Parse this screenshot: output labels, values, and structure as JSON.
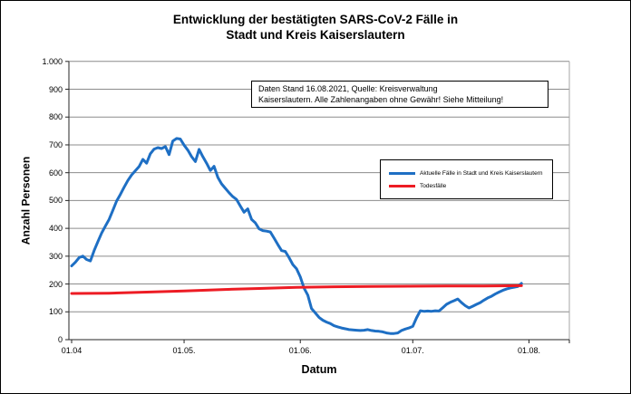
{
  "window": {
    "background": "#ffffff",
    "border_color": "#000000"
  },
  "chart_data": {
    "type": "line",
    "title": "Entwicklung der bestätigten SARS-CoV-2 Fälle in Stadt und Kreis Kaiserslautern",
    "title_lines": [
      "Entwicklung der bestätigten SARS-CoV-2 Fälle in",
      "Stadt und Kreis Kaiserslautern"
    ],
    "annotation": {
      "line1": "Daten Stand 16.08.2021, Quelle: Kreisverwaltung",
      "line2": "Kaiserslautern. Alle Zahlenangaben ohne Gewähr! Siehe Mitteilung!"
    },
    "x_axis": {
      "label": "Datum",
      "domain_days": [
        0,
        133
      ],
      "ticks": [
        {
          "label": "01.04",
          "day": 0
        },
        {
          "label": "01.05.",
          "day": 30
        },
        {
          "label": "01.06.",
          "day": 61
        },
        {
          "label": "01.07.",
          "day": 91
        },
        {
          "label": "01.08.",
          "day": 122
        }
      ]
    },
    "y_axis": {
      "label": "Anzahl Personen",
      "min": 0,
      "max": 1000,
      "step": 100,
      "ticks": [
        {
          "label": "1.000",
          "value": 1000
        },
        {
          "label": "900",
          "value": 900
        },
        {
          "label": "800",
          "value": 800
        },
        {
          "label": "700",
          "value": 700
        },
        {
          "label": "600",
          "value": 600
        },
        {
          "label": "500",
          "value": 500
        },
        {
          "label": "400",
          "value": 400
        },
        {
          "label": "300",
          "value": 300
        },
        {
          "label": "200",
          "value": 200
        },
        {
          "label": "100",
          "value": 100
        },
        {
          "label": "0",
          "value": 0
        }
      ]
    },
    "grid": true,
    "legend_position": "middle-right",
    "colors": {
      "grid": "#8c8c8c",
      "axis": "#262626",
      "frame": "#a6a6a6"
    },
    "series": [
      {
        "name": "Aktuelle Fälle in Stadt und Kreis Kaiserslautern",
        "color": "#1e6fc4",
        "points_day_value": [
          [
            0,
            265
          ],
          [
            1,
            278
          ],
          [
            2,
            295
          ],
          [
            3,
            300
          ],
          [
            4,
            288
          ],
          [
            5,
            283
          ],
          [
            6,
            320
          ],
          [
            7,
            352
          ],
          [
            8,
            383
          ],
          [
            9,
            408
          ],
          [
            10,
            432
          ],
          [
            11,
            465
          ],
          [
            12,
            498
          ],
          [
            13,
            522
          ],
          [
            14,
            548
          ],
          [
            15,
            572
          ],
          [
            16,
            592
          ],
          [
            17,
            607
          ],
          [
            18,
            622
          ],
          [
            19,
            648
          ],
          [
            20,
            634
          ],
          [
            21,
            668
          ],
          [
            22,
            685
          ],
          [
            23,
            690
          ],
          [
            24,
            687
          ],
          [
            25,
            694
          ],
          [
            26,
            665
          ],
          [
            27,
            714
          ],
          [
            28,
            723
          ],
          [
            29,
            721
          ],
          [
            30,
            699
          ],
          [
            31,
            681
          ],
          [
            32,
            658
          ],
          [
            33,
            640
          ],
          [
            34,
            684
          ],
          [
            35,
            658
          ],
          [
            36,
            634
          ],
          [
            37,
            608
          ],
          [
            38,
            623
          ],
          [
            39,
            583
          ],
          [
            40,
            560
          ],
          [
            41,
            544
          ],
          [
            42,
            528
          ],
          [
            43,
            514
          ],
          [
            44,
            504
          ],
          [
            45,
            480
          ],
          [
            46,
            458
          ],
          [
            47,
            470
          ],
          [
            48,
            432
          ],
          [
            49,
            420
          ],
          [
            50,
            398
          ],
          [
            51,
            392
          ],
          [
            52,
            390
          ],
          [
            53,
            387
          ],
          [
            54,
            365
          ],
          [
            55,
            342
          ],
          [
            56,
            320
          ],
          [
            57,
            317
          ],
          [
            58,
            295
          ],
          [
            59,
            270
          ],
          [
            60,
            255
          ],
          [
            61,
            226
          ],
          [
            62,
            185
          ],
          [
            63,
            160
          ],
          [
            64,
            112
          ],
          [
            65,
            96
          ],
          [
            66,
            80
          ],
          [
            67,
            70
          ],
          [
            68,
            63
          ],
          [
            69,
            58
          ],
          [
            70,
            50
          ],
          [
            71,
            46
          ],
          [
            72,
            42
          ],
          [
            73,
            39
          ],
          [
            74,
            36
          ],
          [
            75,
            35
          ],
          [
            76,
            34
          ],
          [
            77,
            33
          ],
          [
            78,
            34
          ],
          [
            79,
            36
          ],
          [
            80,
            33
          ],
          [
            81,
            31
          ],
          [
            82,
            30
          ],
          [
            83,
            28
          ],
          [
            84,
            24
          ],
          [
            85,
            22
          ],
          [
            86,
            22
          ],
          [
            87,
            24
          ],
          [
            88,
            33
          ],
          [
            89,
            38
          ],
          [
            90,
            42
          ],
          [
            91,
            48
          ],
          [
            92,
            78
          ],
          [
            93,
            104
          ],
          [
            94,
            102
          ],
          [
            95,
            103
          ],
          [
            96,
            102
          ],
          [
            97,
            104
          ],
          [
            98,
            103
          ],
          [
            99,
            115
          ],
          [
            100,
            127
          ],
          [
            101,
            134
          ],
          [
            102,
            140
          ],
          [
            103,
            146
          ],
          [
            104,
            133
          ],
          [
            105,
            122
          ],
          [
            106,
            114
          ],
          [
            107,
            120
          ],
          [
            108,
            127
          ],
          [
            109,
            133
          ],
          [
            110,
            142
          ],
          [
            111,
            150
          ],
          [
            112,
            156
          ],
          [
            113,
            164
          ],
          [
            114,
            171
          ],
          [
            115,
            177
          ],
          [
            116,
            182
          ],
          [
            117,
            186
          ],
          [
            118,
            188
          ],
          [
            119,
            191
          ],
          [
            120,
            202
          ]
        ]
      },
      {
        "name": "Todesfälle",
        "color": "#ed1c24",
        "points_day_value": [
          [
            0,
            166
          ],
          [
            10,
            167
          ],
          [
            20,
            171
          ],
          [
            30,
            175
          ],
          [
            40,
            180
          ],
          [
            50,
            184
          ],
          [
            60,
            188
          ],
          [
            70,
            190
          ],
          [
            80,
            191
          ],
          [
            90,
            192
          ],
          [
            100,
            193
          ],
          [
            110,
            193
          ],
          [
            120,
            194
          ]
        ]
      }
    ]
  }
}
